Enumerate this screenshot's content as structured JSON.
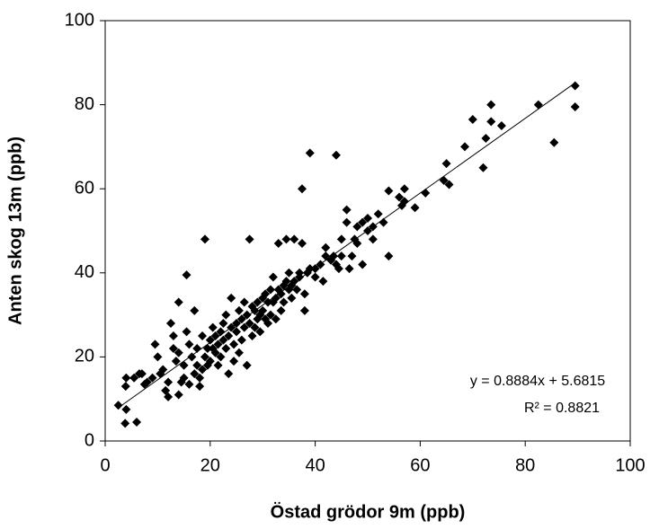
{
  "chart_data": {
    "type": "scatter",
    "x_label": "Östad grödor 9m (ppb)",
    "y_label": "Anten skog 13m (ppb)",
    "xlim": [
      0,
      100
    ],
    "xticks": [
      0,
      20,
      40,
      60,
      80,
      100
    ],
    "ylim": [
      0,
      100
    ],
    "yticks": [
      0,
      20,
      40,
      60,
      80,
      100
    ],
    "grid": false,
    "series": [
      {
        "color": "#000000",
        "x": [
          2.5,
          3.8,
          4,
          3.9,
          4,
          5.5,
          6,
          6.5,
          7,
          7.5,
          8,
          9,
          9.5,
          10,
          10.5,
          11,
          11.5,
          12,
          12,
          12.5,
          13,
          13,
          13.5,
          14,
          14,
          14,
          14.5,
          15,
          15,
          15.5,
          15.5,
          16,
          16,
          16.5,
          17,
          17,
          17.5,
          17.5,
          18,
          18,
          18.5,
          18.5,
          19,
          19,
          19.5,
          19.5,
          20,
          20,
          20.5,
          20.5,
          21,
          21,
          21.5,
          21.5,
          22,
          22,
          22.5,
          22.5,
          23,
          23,
          23.5,
          23.5,
          24,
          24,
          24.5,
          24.5,
          25,
          25,
          25.5,
          25.5,
          26,
          26,
          26.5,
          26.5,
          27,
          27,
          27.5,
          27.5,
          28,
          28,
          28.5,
          28.5,
          29,
          29,
          29.5,
          29.5,
          30,
          30,
          30.5,
          30.5,
          31,
          31,
          31.5,
          31.5,
          32,
          32,
          32.5,
          32.5,
          33,
          33,
          33.5,
          33.5,
          34,
          34,
          34.5,
          34.5,
          35,
          35,
          35.5,
          35.5,
          36,
          36,
          36.5,
          37,
          37,
          37.5,
          37.5,
          38,
          38,
          38.5,
          39,
          39,
          40,
          40,
          41,
          41.5,
          42,
          42,
          43,
          43.5,
          44,
          44,
          44.5,
          45,
          45,
          46,
          46,
          46.5,
          47,
          47.5,
          48,
          48,
          49,
          49,
          50,
          50,
          51,
          51,
          52,
          54,
          53,
          54,
          56,
          56.5,
          57,
          57,
          59,
          61,
          64.5,
          65.5,
          65,
          68.5,
          70,
          72,
          72.5,
          73.5,
          73.5,
          75.5,
          82.5,
          85.5,
          89.5,
          89.5
        ],
        "values": [
          8.5,
          4.2,
          7.5,
          13,
          15,
          15,
          4.5,
          16,
          16,
          13.5,
          14,
          15,
          23,
          20,
          16,
          17,
          12,
          10.5,
          14,
          28,
          22,
          25,
          19,
          33,
          21,
          11,
          14,
          15,
          18,
          26,
          39.5,
          23,
          13.5,
          20,
          31,
          16,
          18,
          22,
          13,
          15,
          25,
          17,
          48,
          20,
          22,
          18,
          24,
          19,
          22,
          27,
          21,
          25,
          23,
          18,
          26,
          20,
          24,
          28,
          30,
          22,
          25,
          16,
          34,
          27,
          23,
          19,
          28,
          26,
          21,
          31,
          29,
          24,
          27,
          33,
          30,
          18,
          48,
          28,
          32,
          25,
          31,
          27,
          33,
          29,
          30,
          26,
          34,
          31,
          29,
          35,
          33,
          28,
          36,
          30,
          39,
          33,
          34,
          29,
          47,
          36,
          35,
          31,
          37,
          33,
          38,
          48,
          36,
          40,
          37,
          34,
          38,
          48,
          36,
          40,
          39,
          60,
          47,
          35,
          31,
          40,
          68.5,
          41,
          41,
          39,
          42,
          38,
          44,
          46,
          43,
          44,
          68,
          42,
          41,
          44,
          48,
          55,
          52,
          41,
          44,
          48,
          51,
          47,
          52,
          42,
          50,
          53,
          51,
          48,
          54,
          44,
          52,
          59.5,
          58,
          56,
          57,
          60,
          55.5,
          59,
          62,
          61,
          66,
          70,
          76.5,
          65,
          72,
          80,
          76,
          75,
          80,
          71,
          84.5,
          79.5
        ]
      }
    ],
    "trendline": {
      "x": [
        2.5,
        89.5
      ],
      "values": [
        7.9,
        85.2
      ],
      "color": "#000000"
    },
    "annotations": [
      "y = 0.8884x + 5.6815",
      "R² = 0.8821"
    ]
  }
}
